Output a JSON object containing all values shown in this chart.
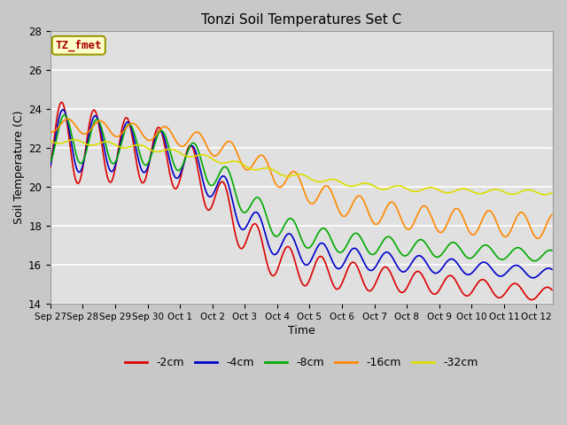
{
  "title": "Tonzi Soil Temperatures Set C",
  "xlabel": "Time",
  "ylabel": "Soil Temperature (C)",
  "ylim": [
    14,
    28
  ],
  "annotation_text": "TZ_fmet",
  "annotation_bg": "#ffffcc",
  "annotation_border": "#999900",
  "annotation_text_color": "#aa0000",
  "fig_bg": "#c8c8c8",
  "axes_bg": "#e0e0e0",
  "grid_color": "#ffffff",
  "series_colors": {
    "-2cm": "#dd0000",
    "-4cm": "#0000cc",
    "-8cm": "#00aa00",
    "-16cm": "#ff8800",
    "-32cm": "#dddd00"
  },
  "xtick_labels": [
    "Sep 27",
    "Sep 28",
    "Sep 29",
    "Sep 30",
    "Oct 1",
    "Oct 2",
    "Oct 3",
    "Oct 4",
    "Oct 5",
    "Oct 6",
    "Oct 7",
    "Oct 8",
    "Oct 9",
    "Oct 10",
    "Oct 11",
    "Oct 12"
  ],
  "ytick_values": [
    14,
    16,
    18,
    20,
    22,
    24,
    26,
    28
  ],
  "line_width": 1.2
}
